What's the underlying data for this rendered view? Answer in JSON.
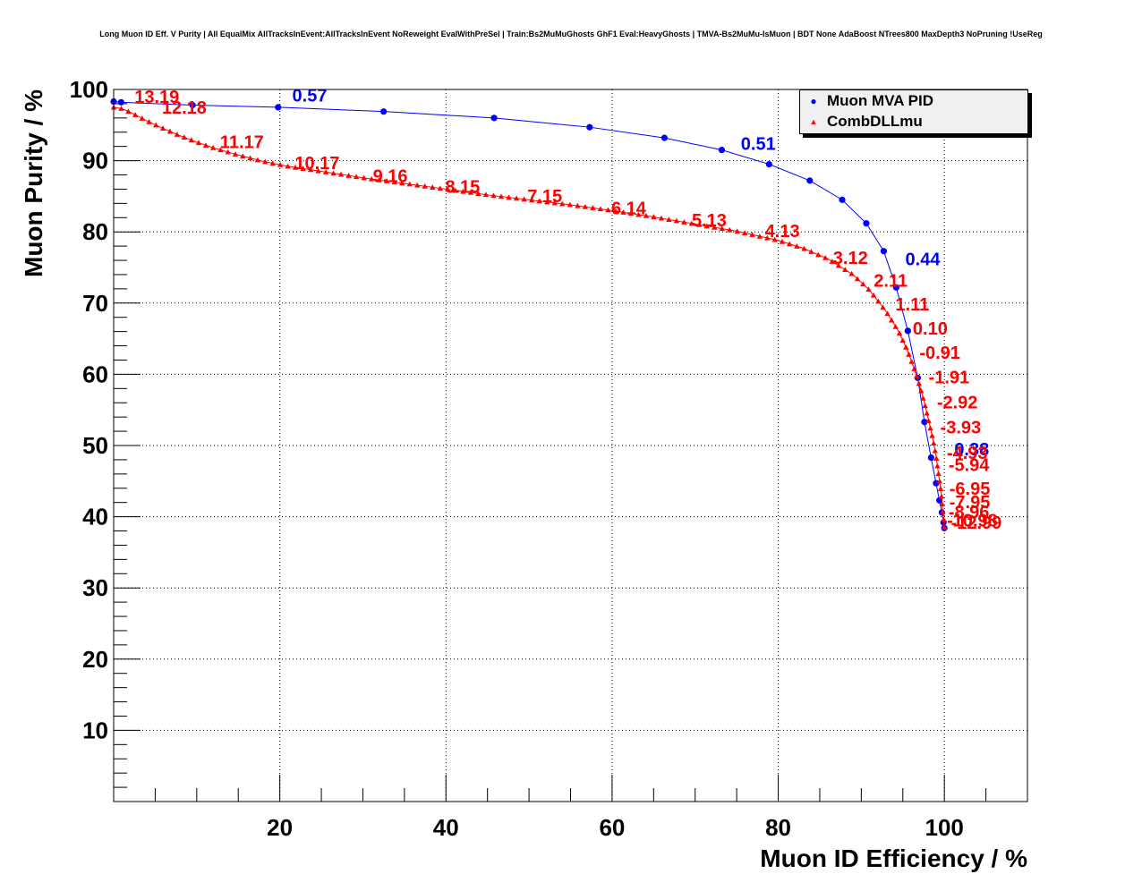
{
  "chart_data": {
    "type": "line",
    "title": "Long Muon ID Eff. V Purity | All EqualMix AllTracksInEvent:AllTracksInEvent NoReweight EvalWithPreSel | Train:Bs2MuMuGhosts GhF1 Eval:HeavyGhosts | TMVA-Bs2MuMu-IsMuon | BDT None AdaBoost NTrees800 MaxDepth3 NoPruning !UseReg",
    "xlabel": "Muon ID Efficiency / %",
    "ylabel": "Muon Purity / %",
    "xlim": [
      0,
      110
    ],
    "ylim": [
      0,
      100
    ],
    "x_ticks": [
      "20",
      "40",
      "60",
      "80",
      "100"
    ],
    "y_ticks": [
      "10",
      "20",
      "30",
      "40",
      "50",
      "60",
      "70",
      "80",
      "90",
      "100"
    ],
    "grid": true,
    "legend_position": "top-right",
    "series": [
      {
        "name": "Muon MVA PID",
        "color": "#0000ff",
        "marker": "circle",
        "x": [
          0.0,
          0.9,
          9.5,
          19.8,
          32.5,
          45.8,
          57.3,
          66.3,
          73.2,
          78.9,
          83.8,
          87.7,
          90.6,
          92.7,
          94.2,
          95.6,
          96.8,
          97.6,
          98.4,
          99.0,
          99.4,
          99.7,
          99.9,
          100.0
        ],
        "y": [
          98.3,
          98.2,
          97.8,
          97.5,
          96.9,
          96.0,
          94.7,
          93.2,
          91.5,
          89.5,
          87.2,
          84.5,
          81.2,
          77.3,
          72.2,
          66.1,
          59.5,
          53.3,
          48.3,
          44.7,
          42.3,
          40.6,
          39.2,
          38.4
        ],
        "annotations": [
          {
            "x": 21.5,
            "y": 98.3,
            "text": "0.57"
          },
          {
            "x": 75.5,
            "y": 91.5,
            "text": "0.51"
          },
          {
            "x": 95.3,
            "y": 75.3,
            "text": "0.44"
          },
          {
            "x": 101.2,
            "y": 48.6,
            "text": "0.38"
          }
        ]
      },
      {
        "name": "CombDLLmu",
        "color": "#ff0000",
        "marker": "triangle",
        "curve_points": {
          "x": [
            0,
            1,
            2,
            4,
            6,
            8,
            10,
            12,
            15,
            18,
            21,
            25,
            30,
            35,
            40,
            45,
            50,
            55,
            60,
            65,
            70,
            75,
            80,
            83,
            86,
            89,
            91,
            93,
            94.5,
            95.5,
            96.3,
            97,
            97.6,
            98.1,
            98.6,
            99,
            99.3,
            99.6,
            99.8,
            100
          ],
          "y": [
            97.5,
            97.3,
            96.8,
            95.6,
            94.5,
            93.5,
            92.6,
            91.8,
            90.8,
            89.9,
            89.2,
            88.5,
            87.6,
            86.8,
            86.0,
            85.2,
            84.5,
            83.8,
            83.0,
            82.1,
            81.1,
            80.1,
            78.8,
            77.7,
            76.2,
            74.0,
            71.8,
            68.8,
            66.0,
            63.5,
            61.0,
            58.5,
            56.0,
            53.5,
            51.0,
            48.5,
            46.0,
            43.5,
            41.0,
            38.4
          ]
        },
        "annotations": [
          {
            "x": 2.5,
            "y": 98.1,
            "text": "13.19"
          },
          {
            "x": 5.8,
            "y": 96.6,
            "text": "12.18"
          },
          {
            "x": 12.8,
            "y": 91.8,
            "text": "11.17"
          },
          {
            "x": 21.8,
            "y": 88.8,
            "text": "10.17"
          },
          {
            "x": 31.2,
            "y": 87.0,
            "text": "9.16"
          },
          {
            "x": 39.9,
            "y": 85.5,
            "text": "8.15"
          },
          {
            "x": 49.8,
            "y": 84.2,
            "text": "7.15"
          },
          {
            "x": 59.9,
            "y": 82.5,
            "text": "6.14"
          },
          {
            "x": 69.6,
            "y": 80.8,
            "text": "5.13"
          },
          {
            "x": 78.4,
            "y": 79.3,
            "text": "4.13"
          },
          {
            "x": 86.6,
            "y": 75.5,
            "text": "3.12"
          },
          {
            "x": 91.5,
            "y": 72.3,
            "text": "2.11"
          },
          {
            "x": 94.1,
            "y": 69.0,
            "text": "1.11"
          },
          {
            "x": 96.2,
            "y": 65.6,
            "text": "0.10"
          },
          {
            "x": 97.0,
            "y": 62.2,
            "text": "-0.91"
          },
          {
            "x": 98.1,
            "y": 58.7,
            "text": "-1.91"
          },
          {
            "x": 99.1,
            "y": 55.2,
            "text": "-2.92"
          },
          {
            "x": 99.5,
            "y": 51.7,
            "text": "-3.93"
          },
          {
            "x": 100.3,
            "y": 48.1,
            "text": "-4.93"
          },
          {
            "x": 100.5,
            "y": 46.4,
            "text": "-5.94"
          },
          {
            "x": 100.6,
            "y": 43.1,
            "text": "-6.95"
          },
          {
            "x": 100.6,
            "y": 41.2,
            "text": "-7.95"
          },
          {
            "x": 100.5,
            "y": 39.8,
            "text": "-8.96"
          },
          {
            "x": 100.3,
            "y": 38.6,
            "text": "-10.98"
          },
          {
            "x": 100.8,
            "y": 38.3,
            "text": "-12.99"
          }
        ]
      }
    ]
  }
}
